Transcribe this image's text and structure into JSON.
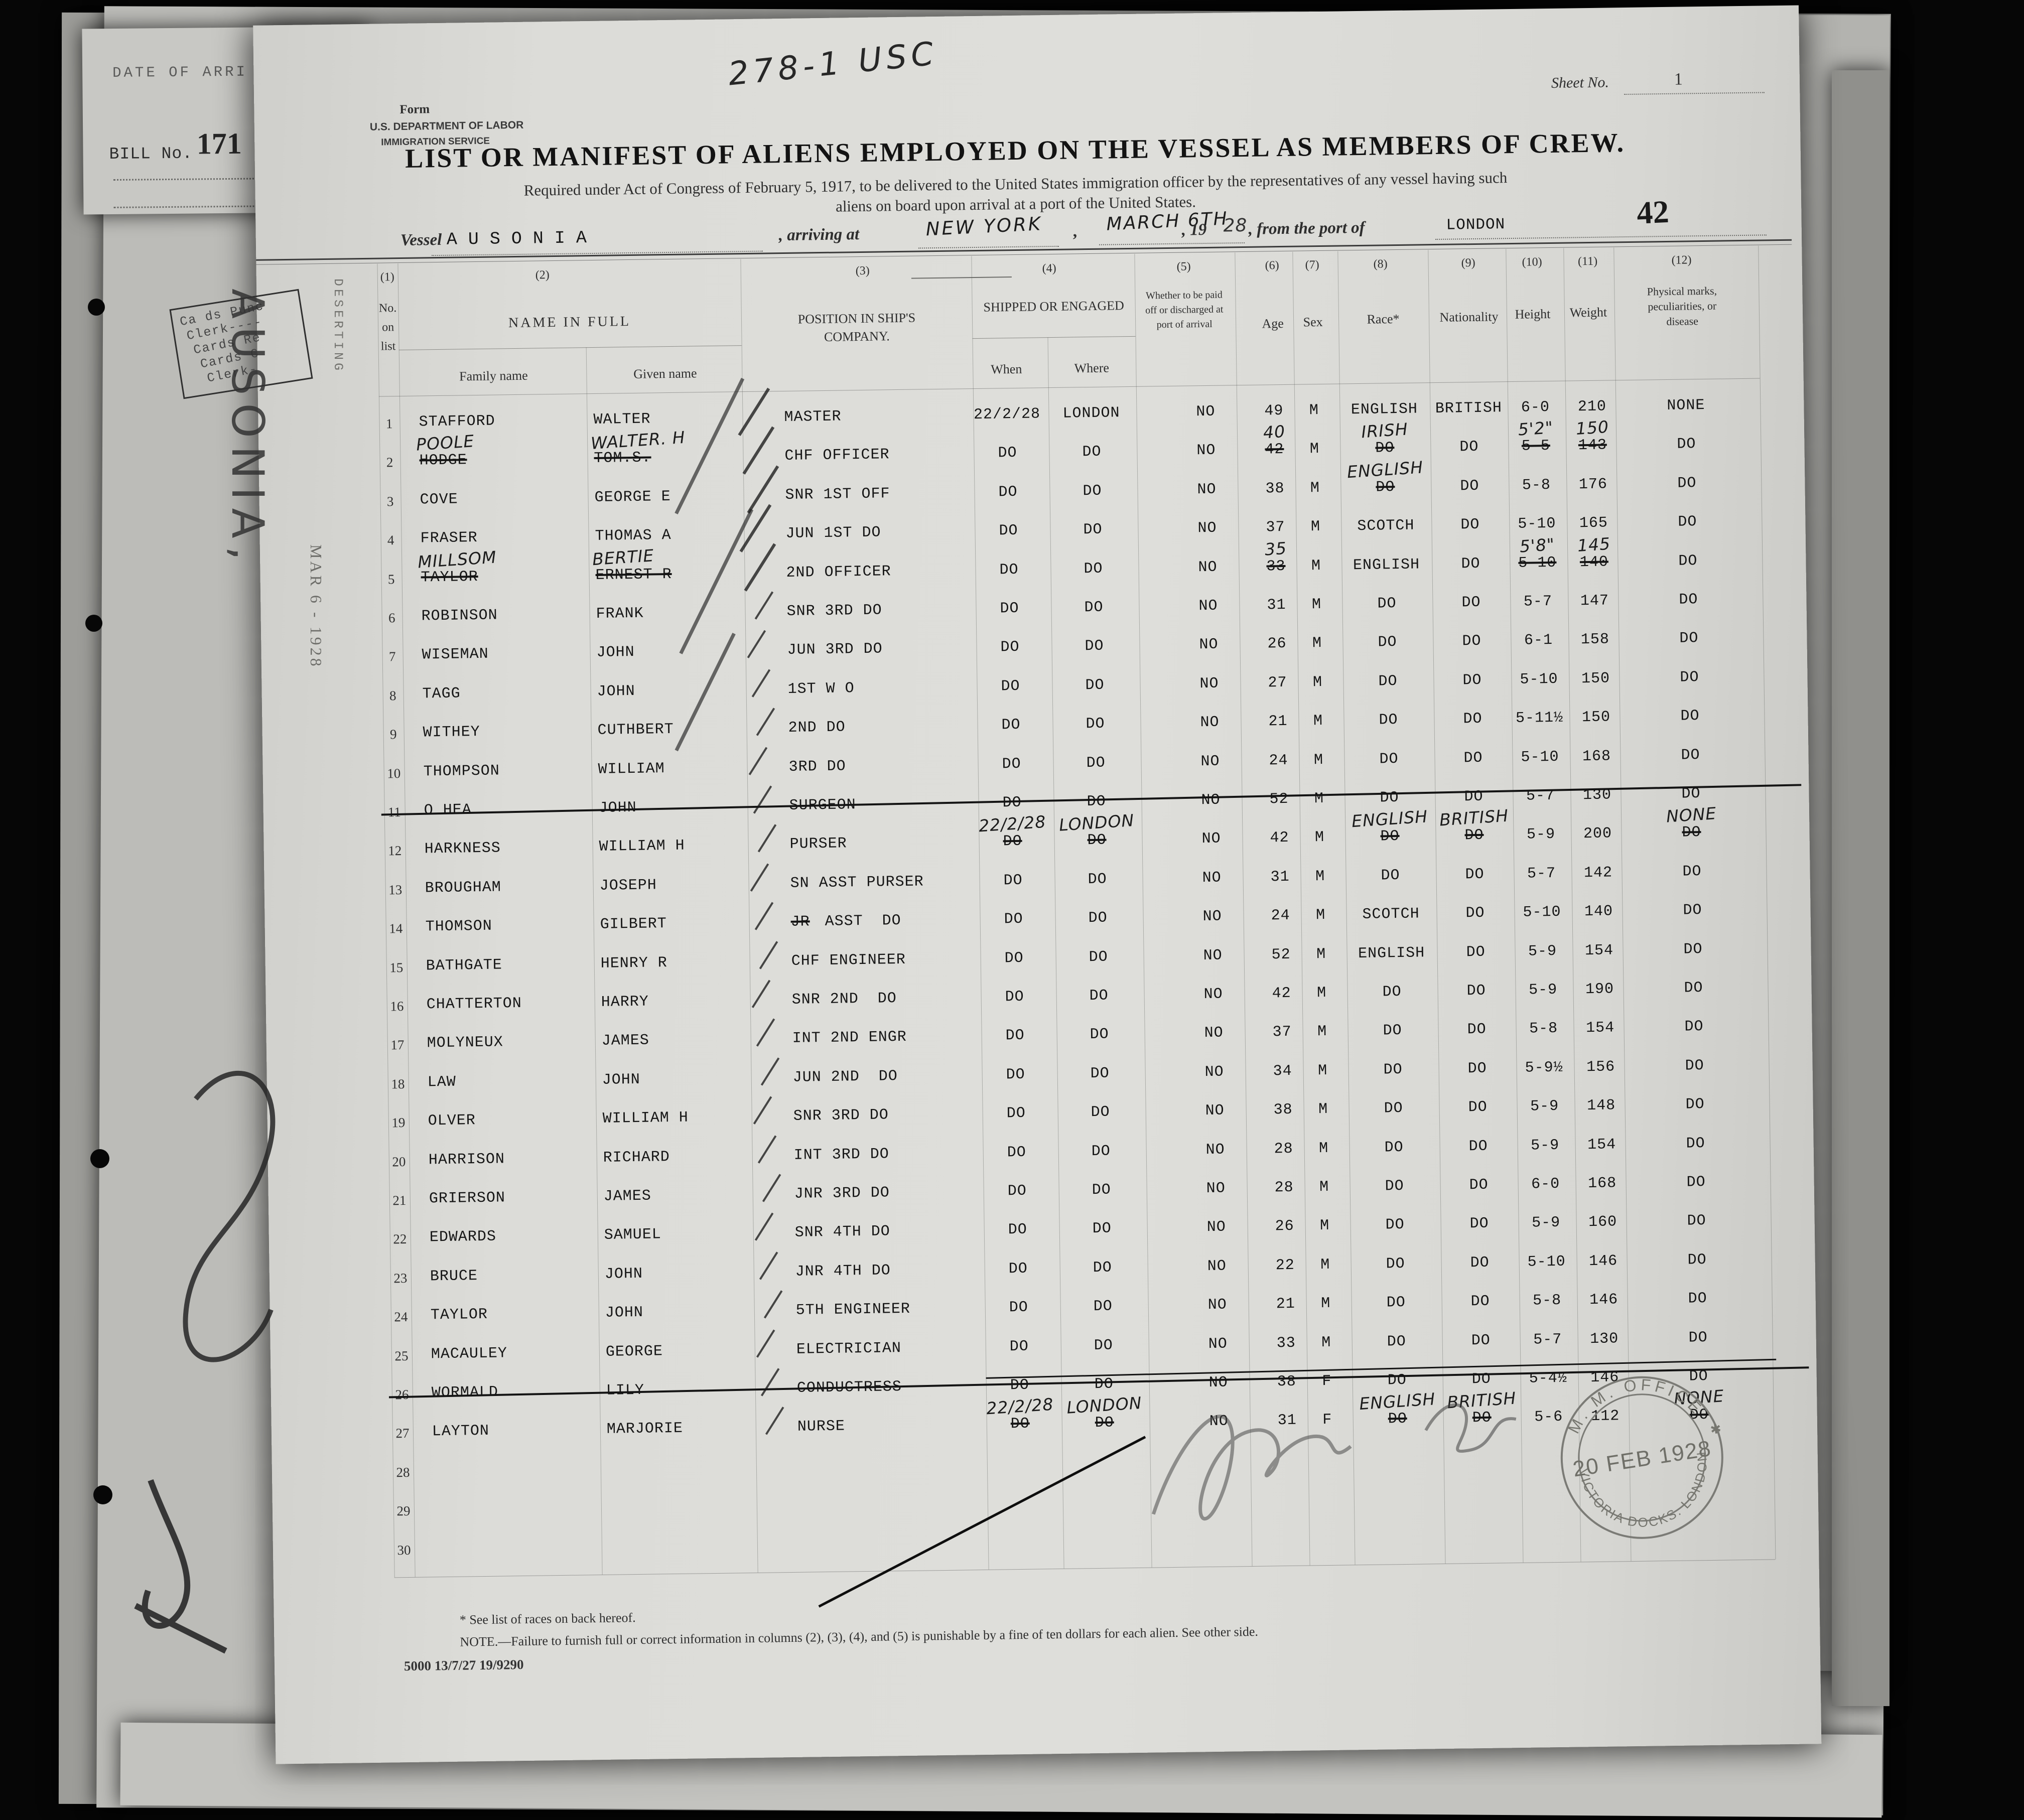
{
  "page": {
    "form_label": "Form",
    "dept_line1": "U.S. DEPARTMENT OF LABOR",
    "dept_line2": "IMMIGRATION SERVICE",
    "handwritten_top": "278-1 USC",
    "sheet_no_label": "Sheet No.",
    "sheet_no_value": "1",
    "title": "LIST OR MANIFEST OF ALIENS EMPLOYED ON THE VESSEL AS MEMBERS OF CREW.",
    "subtitle_line1": "Required under Act of Congress of February 5, 1917, to be delivered to the United States immigration officer by the representatives of any vessel having such",
    "subtitle_line2": "aliens on board upon arrival at a port of the United States.",
    "crew_count": "42",
    "vessel_label": "Vessel",
    "vessel_name": "AUSONIA",
    "arriving_label": ", arriving at",
    "arrival_port": "NEW YORK",
    "comma": ",",
    "arrival_date": "MARCH 6TH",
    "year_prefix": ", 19",
    "year_hw": "28",
    "from_label": ", from the port of",
    "departure_port": "LONDON"
  },
  "table": {
    "col_numbers": [
      "(1)",
      "(2)",
      "(3)",
      "(4)",
      "(5)",
      "(6)",
      "(7)",
      "(8)",
      "(9)",
      "(10)",
      "(11)",
      "(12)"
    ],
    "headers": {
      "c1": [
        "No.",
        "on",
        "list"
      ],
      "c2": "NAME IN FULL",
      "c2a": "Family name",
      "c2b": "Given name",
      "c3": [
        "POSITION IN SHIP'S",
        "COMPANY."
      ],
      "c4": "SHIPPED OR ENGAGED",
      "c4a": "When",
      "c4b": "Where",
      "c5": [
        "Whether to be paid",
        "off or discharged at",
        "port of arrival"
      ],
      "c6": "Age",
      "c7": "Sex",
      "c8": "Race*",
      "c9": "Nationality",
      "c10": "Height",
      "c11": "Weight",
      "c12": [
        "Physical marks,",
        "peculiarities, or",
        "disease"
      ]
    },
    "rows": [
      {
        "n": "1",
        "fam": "STAFFORD",
        "giv": "WALTER",
        "pos": "MASTER",
        "whn": "22/2/28",
        "whr": "LONDON",
        "pay": "NO",
        "age": "49",
        "sex": "M",
        "rac": "ENGLISH",
        "nat": "BRITISH",
        "hgt": "6-0",
        "wgt": "210",
        "mks": "NONE"
      },
      {
        "n": "2",
        "fam": "HODGE",
        "giv": "TOM.S.",
        "pos": "CHF OFFICER",
        "whn": "DO",
        "whr": "DO",
        "pay": "NO",
        "age": "42",
        "sex": "M",
        "rac": "DO",
        "nat": "DO",
        "hgt": "5-5",
        "wgt": "143",
        "mks": "DO",
        "st": [
          "fam",
          "giv",
          "age",
          "rac",
          "hgt",
          "wgt"
        ],
        "hw": {
          "fam": "POOLE",
          "giv": "WALTER. H",
          "age": "40",
          "rac": "IRISH",
          "hgt": "5'2\"",
          "wgt": "150"
        }
      },
      {
        "n": "3",
        "fam": "COVE",
        "giv": "GEORGE E",
        "pos": "SNR 1ST OFF",
        "whn": "DO",
        "whr": "DO",
        "pay": "NO",
        "age": "38",
        "sex": "M",
        "rac": "DO",
        "nat": "DO",
        "hgt": "5-8",
        "wgt": "176",
        "mks": "DO",
        "st": [
          "rac"
        ],
        "hw": {
          "rac": "ENGLISH"
        }
      },
      {
        "n": "4",
        "fam": "FRASER",
        "giv": "THOMAS A",
        "pos": "JUN 1ST DO",
        "whn": "DO",
        "whr": "DO",
        "pay": "NO",
        "age": "37",
        "sex": "M",
        "rac": "SCOTCH",
        "nat": "DO",
        "hgt": "5-10",
        "wgt": "165",
        "mks": "DO"
      },
      {
        "n": "5",
        "fam": "TAYLOR",
        "giv": "ERNEST R",
        "pos": "2ND OFFICER",
        "whn": "DO",
        "whr": "DO",
        "pay": "NO",
        "age": "33",
        "sex": "M",
        "rac": "ENGLISH",
        "nat": "DO",
        "hgt": "5-10",
        "wgt": "140",
        "mks": "DO",
        "st": [
          "fam",
          "giv",
          "age",
          "hgt",
          "wgt"
        ],
        "hw": {
          "fam": "MILLSOM",
          "giv": "BERTIE",
          "age": "35",
          "hgt": "5'8\"",
          "wgt": "145"
        }
      },
      {
        "n": "6",
        "fam": "ROBINSON",
        "giv": "FRANK",
        "pos": "SNR 3RD DO",
        "whn": "DO",
        "whr": "DO",
        "pay": "NO",
        "age": "31",
        "sex": "M",
        "rac": "DO",
        "nat": "DO",
        "hgt": "5-7",
        "wgt": "147",
        "mks": "DO"
      },
      {
        "n": "7",
        "fam": "WISEMAN",
        "giv": "JOHN",
        "pos": "JUN 3RD DO",
        "whn": "DO",
        "whr": "DO",
        "pay": "NO",
        "age": "26",
        "sex": "M",
        "rac": "DO",
        "nat": "DO",
        "hgt": "6-1",
        "wgt": "158",
        "mks": "DO"
      },
      {
        "n": "8",
        "fam": "TAGG",
        "giv": "JOHN",
        "pos": "1ST W O",
        "whn": "DO",
        "whr": "DO",
        "pay": "NO",
        "age": "27",
        "sex": "M",
        "rac": "DO",
        "nat": "DO",
        "hgt": "5-10",
        "wgt": "150",
        "mks": "DO"
      },
      {
        "n": "9",
        "fam": "WITHEY",
        "giv": "CUTHBERT",
        "pos": "2ND DO",
        "whn": "DO",
        "whr": "DO",
        "pay": "NO",
        "age": "21",
        "sex": "M",
        "rac": "DO",
        "nat": "DO",
        "hgt": "5-11½",
        "wgt": "150",
        "mks": "DO"
      },
      {
        "n": "10",
        "fam": "THOMPSON",
        "giv": "WILLIAM",
        "pos": "3RD DO",
        "whn": "DO",
        "whr": "DO",
        "pay": "NO",
        "age": "24",
        "sex": "M",
        "rac": "DO",
        "nat": "DO",
        "hgt": "5-10",
        "wgt": "168",
        "mks": "DO"
      },
      {
        "n": "11",
        "fam": "O HEA",
        "giv": "JOHN",
        "pos": "SURGEON",
        "whn": "DO",
        "whr": "DO",
        "pay": "NO",
        "age": "52",
        "sex": "M",
        "rac": "DO",
        "nat": "DO",
        "hgt": "5-7",
        "wgt": "130",
        "mks": "DO",
        "rs": true
      },
      {
        "n": "12",
        "fam": "HARKNESS",
        "giv": "WILLIAM H",
        "pos": "PURSER",
        "whn": "DO",
        "whr": "DO",
        "pay": "NO",
        "age": "42",
        "sex": "M",
        "rac": "DO",
        "nat": "DO",
        "hgt": "5-9",
        "wgt": "200",
        "mks": "DO",
        "st": [
          "whn",
          "whr",
          "rac",
          "nat",
          "mks"
        ],
        "hw": {
          "whn": "22/2/28",
          "whr": "LONDON",
          "rac": "ENGLISH",
          "nat": "BRITISH",
          "mks": "NONE"
        }
      },
      {
        "n": "13",
        "fam": "BROUGHAM",
        "giv": "JOSEPH",
        "pos": "SN ASST PURSER",
        "whn": "DO",
        "whr": "DO",
        "pay": "NO",
        "age": "31",
        "sex": "M",
        "rac": "DO",
        "nat": "DO",
        "hgt": "5-7",
        "wgt": "142",
        "mks": "DO"
      },
      {
        "n": "14",
        "fam": "THOMSON",
        "giv": "GILBERT",
        "posPre": "JR",
        "pos": "ASST  DO",
        "whn": "DO",
        "whr": "DO",
        "pay": "NO",
        "age": "24",
        "sex": "M",
        "rac": "SCOTCH",
        "nat": "DO",
        "hgt": "5-10",
        "wgt": "140",
        "mks": "DO"
      },
      {
        "n": "15",
        "fam": "BATHGATE",
        "giv": "HENRY R",
        "pos": "CHF ENGINEER",
        "whn": "DO",
        "whr": "DO",
        "pay": "NO",
        "age": "52",
        "sex": "M",
        "rac": "ENGLISH",
        "nat": "DO",
        "hgt": "5-9",
        "wgt": "154",
        "mks": "DO"
      },
      {
        "n": "16",
        "fam": "CHATTERTON",
        "giv": "HARRY",
        "pos": "SNR 2ND  DO",
        "whn": "DO",
        "whr": "DO",
        "pay": "NO",
        "age": "42",
        "sex": "M",
        "rac": "DO",
        "nat": "DO",
        "hgt": "5-9",
        "wgt": "190",
        "mks": "DO"
      },
      {
        "n": "17",
        "fam": "MOLYNEUX",
        "giv": "JAMES",
        "pos": "INT 2ND ENGR",
        "whn": "DO",
        "whr": "DO",
        "pay": "NO",
        "age": "37",
        "sex": "M",
        "rac": "DO",
        "nat": "DO",
        "hgt": "5-8",
        "wgt": "154",
        "mks": "DO"
      },
      {
        "n": "18",
        "fam": "LAW",
        "giv": "JOHN",
        "pos": "JUN 2ND  DO",
        "whn": "DO",
        "whr": "DO",
        "pay": "NO",
        "age": "34",
        "sex": "M",
        "rac": "DO",
        "nat": "DO",
        "hgt": "5-9½",
        "wgt": "156",
        "mks": "DO"
      },
      {
        "n": "19",
        "fam": "OLVER",
        "giv": "WILLIAM H",
        "pos": "SNR 3RD DO",
        "whn": "DO",
        "whr": "DO",
        "pay": "NO",
        "age": "38",
        "sex": "M",
        "rac": "DO",
        "nat": "DO",
        "hgt": "5-9",
        "wgt": "148",
        "mks": "DO"
      },
      {
        "n": "20",
        "fam": "HARRISON",
        "giv": "RICHARD",
        "pos": "INT 3RD DO",
        "whn": "DO",
        "whr": "DO",
        "pay": "NO",
        "age": "28",
        "sex": "M",
        "rac": "DO",
        "nat": "DO",
        "hgt": "5-9",
        "wgt": "154",
        "mks": "DO"
      },
      {
        "n": "21",
        "fam": "GRIERSON",
        "giv": "JAMES",
        "pos": "JNR 3RD DO",
        "whn": "DO",
        "whr": "DO",
        "pay": "NO",
        "age": "28",
        "sex": "M",
        "rac": "DO",
        "nat": "DO",
        "hgt": "6-0",
        "wgt": "168",
        "mks": "DO"
      },
      {
        "n": "22",
        "fam": "EDWARDS",
        "giv": "SAMUEL",
        "pos": "SNR 4TH DO",
        "whn": "DO",
        "whr": "DO",
        "pay": "NO",
        "age": "26",
        "sex": "M",
        "rac": "DO",
        "nat": "DO",
        "hgt": "5-9",
        "wgt": "160",
        "mks": "DO"
      },
      {
        "n": "23",
        "fam": "BRUCE",
        "giv": "JOHN",
        "pos": "JNR 4TH DO",
        "whn": "DO",
        "whr": "DO",
        "pay": "NO",
        "age": "22",
        "sex": "M",
        "rac": "DO",
        "nat": "DO",
        "hgt": "5-10",
        "wgt": "146",
        "mks": "DO"
      },
      {
        "n": "24",
        "fam": "TAYLOR",
        "giv": "JOHN",
        "pos": "5TH ENGINEER",
        "whn": "DO",
        "whr": "DO",
        "pay": "NO",
        "age": "21",
        "sex": "M",
        "rac": "DO",
        "nat": "DO",
        "hgt": "5-8",
        "wgt": "146",
        "mks": "DO"
      },
      {
        "n": "25",
        "fam": "MACAULEY",
        "giv": "GEORGE",
        "pos": "ELECTRICIAN",
        "whn": "DO",
        "whr": "DO",
        "pay": "NO",
        "age": "33",
        "sex": "M",
        "rac": "DO",
        "nat": "DO",
        "hgt": "5-7",
        "wgt": "130",
        "mks": "DO"
      },
      {
        "n": "26",
        "fam": "WORMALD",
        "giv": "LILY",
        "pos": "CONDUCTRESS",
        "whn": "DO",
        "whr": "DO",
        "pay": "NO",
        "age": "38",
        "sex": "F",
        "rac": "DO",
        "nat": "DO",
        "hgt": "5-4½",
        "wgt": "146",
        "mks": "DO",
        "rs": true
      },
      {
        "n": "27",
        "fam": "LAYTON",
        "giv": "MARJORIE",
        "pos": "NURSE",
        "whn": "DO",
        "whr": "DO",
        "pay": "NO",
        "age": "31",
        "sex": "F",
        "rac": "DO",
        "nat": "DO",
        "hgt": "5-6",
        "wgt": "112",
        "mks": "DO",
        "st": [
          "whn",
          "whr",
          "rac",
          "nat",
          "mks"
        ],
        "hw": {
          "whn": "22/2/28",
          "whr": "LONDON",
          "rac": "ENGLISH",
          "nat": "BRITISH",
          "mks": "NONE"
        }
      },
      {
        "n": "28"
      },
      {
        "n": "29"
      },
      {
        "n": "30"
      }
    ]
  },
  "footer": {
    "star_note": "* See list of races on back hereof.",
    "note": "NOTE.—Failure to furnish full or correct information in columns (2), (3), (4), and (5) is punishable by a fine of ten dollars for each alien.   See other side.",
    "print_code": "5000  13/7/27  19/9290"
  },
  "stamps": {
    "round_top": "M. M.  OFFICE",
    "round_center": "20 FEB 1928",
    "round_bottom": "VICTORIA DOCKS. LONDON",
    "bill_line1": "DATE OF ARRI",
    "bill_label": "BILL No.",
    "bill_number": "171",
    "cards": [
      "Ca ds Punc",
      "Clerk----",
      "Cards Re",
      "Cards C",
      "Clerk-"
    ],
    "vessel_vertical": "AUSONIA,",
    "deserting": "DESERTING",
    "date_vertical": "MAR 6 - 1928"
  }
}
